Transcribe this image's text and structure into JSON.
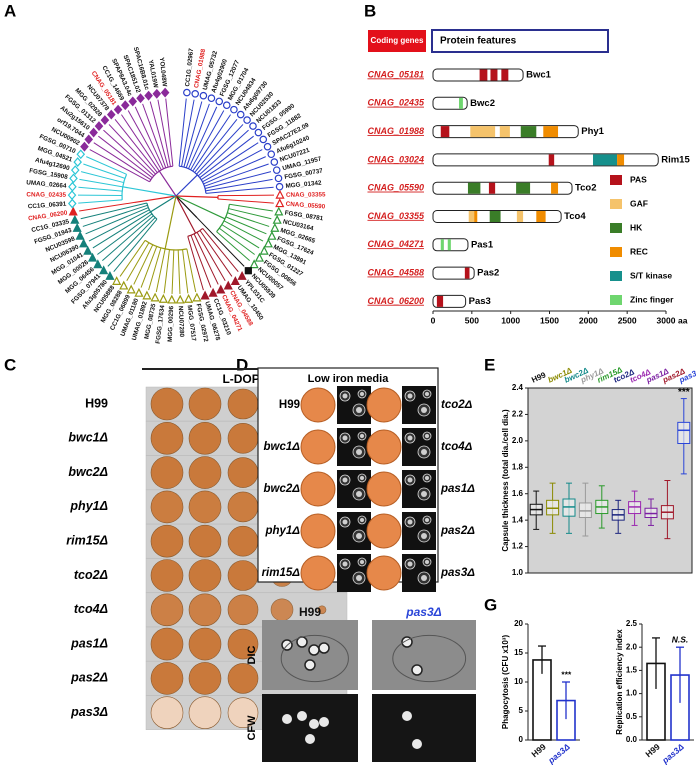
{
  "panel_labels": [
    "A",
    "B",
    "C",
    "D",
    "E",
    "F",
    "G"
  ],
  "tree": {
    "clades": [
      {
        "color": "#2b3fc9",
        "marker": "circle",
        "filled": false,
        "leaves": [
          {
            "label": "CC1G_02967"
          },
          {
            "label": "CNAG_01988",
            "color": "#e02020"
          },
          {
            "label": "UMAG_05732"
          },
          {
            "label": "Afu4g02900"
          },
          {
            "label": "FGSG_12077"
          },
          {
            "label": "MGG_01704"
          },
          {
            "label": "NCU04834"
          },
          {
            "label": "Afu6g09730"
          },
          {
            "label": "NCU02530"
          },
          {
            "label": "NCU01833"
          },
          {
            "label": "FGSG_05990"
          },
          {
            "label": "FGSG_11882"
          },
          {
            "label": "SPAC27E2.09"
          },
          {
            "label": "Afu6g10240"
          },
          {
            "label": "NCU07221"
          },
          {
            "label": "UMAG_11957"
          },
          {
            "label": "FGSG_00737"
          },
          {
            "label": "MGG_01342"
          }
        ]
      },
      {
        "color": "#e02020",
        "marker": "triangle",
        "filled": false,
        "leaves": [
          {
            "label": "CNAG_03355",
            "color": "#e02020"
          },
          {
            "label": "CNAG_05590",
            "color": "#e02020"
          }
        ]
      },
      {
        "color": "#2e9a3a",
        "marker": "triangle",
        "filled": false,
        "leaves": [
          {
            "label": "FGSG_08781"
          },
          {
            "label": "NCU03164"
          },
          {
            "label": "MGG_02665"
          },
          {
            "label": "FGSG_17624"
          },
          {
            "label": "MGG_13891"
          },
          {
            "label": "FGSG_01227"
          },
          {
            "label": "FGSG_00856"
          },
          {
            "label": "NCU00057"
          }
        ]
      },
      {
        "color": "#111111",
        "marker": "square",
        "filled": true,
        "leaves": [
          {
            "label": "NCU05939"
          }
        ]
      },
      {
        "color": "#a0182a",
        "marker": "triangle",
        "filled": true,
        "leaves": [
          {
            "label": "YPL031C"
          },
          {
            "label": "UMAG_10450"
          },
          {
            "label": "CNAG_04588",
            "color": "#e02020"
          },
          {
            "label": "CNAG_04271",
            "color": "#e02020"
          },
          {
            "label": "CC1G_03210"
          },
          {
            "label": "UMAG_06278"
          }
        ]
      },
      {
        "color": "#9a9a10",
        "marker": "triangle",
        "filled": false,
        "leaves": [
          {
            "label": "FGSG_02972"
          },
          {
            "label": "MGG_07517"
          },
          {
            "label": "NCU07280"
          },
          {
            "label": "MGG_00296"
          },
          {
            "label": "FGSG_17634"
          },
          {
            "label": "MGG_08735"
          },
          {
            "label": "UMAG_01892"
          },
          {
            "label": "UMAG_01180"
          },
          {
            "label": "CC1G_06899"
          },
          {
            "label": "MGG_08288"
          },
          {
            "label": "NCU05888"
          }
        ]
      },
      {
        "color": "#14807a",
        "marker": "triangle",
        "filled": true,
        "leaves": [
          {
            "label": "Afu3g05780"
          },
          {
            "label": "FGSG_07941"
          },
          {
            "label": "MGG_06456"
          },
          {
            "label": "MGG_00026"
          },
          {
            "label": "MGG_01041"
          },
          {
            "label": "NCU06390"
          },
          {
            "label": "NCU03598"
          },
          {
            "label": "FGSG_01943"
          },
          {
            "label": "CC1G_03335"
          }
        ]
      },
      {
        "color": "#e02020",
        "marker": "triangle",
        "filled": true,
        "leaves": [
          {
            "label": "CNAG_06200",
            "color": "#e02020"
          }
        ]
      },
      {
        "color": "#2cc6d6",
        "marker": "diamond",
        "filled": false,
        "leaves": [
          {
            "label": "CC1G_06391"
          },
          {
            "label": "CNAG_02435",
            "color": "#e02020"
          },
          {
            "label": "UMAG_02664"
          },
          {
            "label": "FGSG_15908"
          },
          {
            "label": "Afu4g12690"
          },
          {
            "label": "MGG_04521"
          },
          {
            "label": "FGSG_00710"
          }
        ]
      },
      {
        "color": "#8a2a9a",
        "marker": "diamond",
        "filled": true,
        "leaves": [
          {
            "label": "NCU00902"
          },
          {
            "label": "orf19.7044"
          },
          {
            "label": "Afu2g15610"
          },
          {
            "label": "FGSG_01312"
          },
          {
            "label": "MGG_02928"
          },
          {
            "label": "NCU07378"
          },
          {
            "label": "CNAG_05181",
            "color": "#e02020"
          },
          {
            "label": "CC1G_14669"
          },
          {
            "label": "SPAP8A3.04c"
          },
          {
            "label": "SPAC1851.02"
          },
          {
            "label": "SPAC16B8.01c"
          },
          {
            "label": "YAL019W"
          },
          {
            "label": "YOL048W"
          }
        ]
      }
    ]
  },
  "domains": {
    "header_genes": "Coding genes",
    "header_features": "Protein features",
    "xlim": [
      0,
      3000
    ],
    "xticks": [
      0,
      500,
      1000,
      1500,
      2000,
      2500,
      3000
    ],
    "x_unit": "aa",
    "legend": [
      {
        "type": "PAS",
        "color": "#b5121b"
      },
      {
        "type": "GAF",
        "color": "#f5c36b"
      },
      {
        "type": "HK",
        "color": "#3a7d28"
      },
      {
        "type": "REC",
        "color": "#f08c00"
      },
      {
        "type": "S/T kinase",
        "color": "#16908c"
      },
      {
        "type": "Zinc finger",
        "color": "#6fd66f"
      }
    ],
    "proteins": [
      {
        "gene": "CNAG_05181",
        "name": "Bwc1",
        "length": 1160,
        "domains": [
          {
            "type": "PAS",
            "start": 600,
            "end": 700
          },
          {
            "type": "PAS",
            "start": 740,
            "end": 830
          },
          {
            "type": "PAS",
            "start": 880,
            "end": 970
          }
        ]
      },
      {
        "gene": "CNAG_02435",
        "name": "Bwc2",
        "length": 440,
        "domains": [
          {
            "type": "Zinc finger",
            "start": 335,
            "end": 385
          }
        ]
      },
      {
        "gene": "CNAG_01988",
        "name": "Phy1",
        "length": 1870,
        "domains": [
          {
            "type": "PAS",
            "start": 100,
            "end": 210
          },
          {
            "type": "GAF",
            "start": 480,
            "end": 800
          },
          {
            "type": "GAF",
            "start": 860,
            "end": 990
          },
          {
            "type": "HK",
            "start": 1130,
            "end": 1330
          },
          {
            "type": "REC",
            "start": 1420,
            "end": 1610
          }
        ]
      },
      {
        "gene": "CNAG_03024",
        "name": "Rim15",
        "length": 2900,
        "domains": [
          {
            "type": "PAS",
            "start": 1490,
            "end": 1560
          },
          {
            "type": "S/T kinase",
            "start": 2060,
            "end": 2370
          },
          {
            "type": "REC",
            "start": 2370,
            "end": 2460
          }
        ]
      },
      {
        "gene": "CNAG_05590",
        "name": "Tco2",
        "length": 1790,
        "domains": [
          {
            "type": "HK",
            "start": 450,
            "end": 610
          },
          {
            "type": "PAS",
            "start": 720,
            "end": 800
          },
          {
            "type": "HK",
            "start": 1070,
            "end": 1250
          },
          {
            "type": "REC",
            "start": 1520,
            "end": 1610
          }
        ]
      },
      {
        "gene": "CNAG_03355",
        "name": "Tco4",
        "length": 1650,
        "domains": [
          {
            "type": "GAF",
            "start": 460,
            "end": 530
          },
          {
            "type": "REC",
            "start": 530,
            "end": 570
          },
          {
            "type": "HK",
            "start": 730,
            "end": 870
          },
          {
            "type": "GAF",
            "start": 1080,
            "end": 1160
          },
          {
            "type": "REC",
            "start": 1330,
            "end": 1450
          }
        ]
      },
      {
        "gene": "CNAG_04271",
        "name": "Pas1",
        "length": 450,
        "domains": [
          {
            "type": "Zinc finger",
            "start": 100,
            "end": 140
          },
          {
            "type": "Zinc finger",
            "start": 190,
            "end": 230
          }
        ]
      },
      {
        "gene": "CNAG_04588",
        "name": "Pas2",
        "length": 530,
        "domains": [
          {
            "type": "PAS",
            "start": 410,
            "end": 470
          }
        ]
      },
      {
        "gene": "CNAG_06200",
        "name": "Pas3",
        "length": 420,
        "domains": [
          {
            "type": "PAS",
            "start": 50,
            "end": 130
          }
        ]
      }
    ]
  },
  "spot_assay": {
    "title": "L-DOPA",
    "strains": [
      {
        "name": "H99",
        "color": "#c9793b"
      },
      {
        "name": "bwc1Δ",
        "color": "#c9793b"
      },
      {
        "name": "bwc2Δ",
        "color": "#c9793b"
      },
      {
        "name": "phy1Δ",
        "color": "#cb7d40"
      },
      {
        "name": "rim15Δ",
        "color": "#c9793b"
      },
      {
        "name": "tco2Δ",
        "color": "#c9793b"
      },
      {
        "name": "tco4Δ",
        "color": "#cc8046"
      },
      {
        "name": "pas1Δ",
        "color": "#c9793b"
      },
      {
        "name": "pas2Δ",
        "color": "#c9793b"
      },
      {
        "name": "pas3Δ",
        "color": "#efd3bd"
      }
    ]
  },
  "low_iron": {
    "title": "Low iron media",
    "left": [
      "H99",
      "bwc1Δ",
      "bwc2Δ",
      "phy1Δ",
      "rim15Δ"
    ],
    "right": [
      "tco2Δ",
      "tco4Δ",
      "pas1Δ",
      "pas2Δ",
      "pas3Δ"
    ]
  },
  "micrographs": {
    "columns": [
      "H99",
      "pas3Δ"
    ],
    "rows": [
      "DIC",
      "CFW"
    ]
  },
  "chart_data": [
    {
      "type": "box",
      "ylabel": "Capsule thickness (total dia./cell dia.)",
      "categories": [
        "H99",
        "bwc1Δ",
        "bwc2Δ",
        "phy1Δ",
        "rim15Δ",
        "tco2Δ",
        "tco4Δ",
        "pas1Δ",
        "pas2Δ",
        "pas3Δ"
      ],
      "colors": [
        "#111111",
        "#8a8a00",
        "#138a8a",
        "#9a9a9a",
        "#2a9a2a",
        "#1a237e",
        "#9b27b0",
        "#7b1fa2",
        "#a0182a",
        "#2a45d8"
      ],
      "boxes": [
        {
          "min": 1.33,
          "q1": 1.44,
          "median": 1.48,
          "q3": 1.52,
          "max": 1.62
        },
        {
          "min": 1.3,
          "q1": 1.44,
          "median": 1.49,
          "q3": 1.55,
          "max": 1.68
        },
        {
          "min": 1.3,
          "q1": 1.43,
          "median": 1.5,
          "q3": 1.56,
          "max": 1.68
        },
        {
          "min": 1.28,
          "q1": 1.42,
          "median": 1.47,
          "q3": 1.53,
          "max": 1.68
        },
        {
          "min": 1.34,
          "q1": 1.45,
          "median": 1.5,
          "q3": 1.55,
          "max": 1.66
        },
        {
          "min": 1.3,
          "q1": 1.4,
          "median": 1.44,
          "q3": 1.48,
          "max": 1.55
        },
        {
          "min": 1.36,
          "q1": 1.45,
          "median": 1.5,
          "q3": 1.54,
          "max": 1.62
        },
        {
          "min": 1.36,
          "q1": 1.42,
          "median": 1.45,
          "q3": 1.49,
          "max": 1.56
        },
        {
          "min": 1.26,
          "q1": 1.41,
          "median": 1.46,
          "q3": 1.51,
          "max": 1.7
        },
        {
          "min": 1.75,
          "q1": 1.98,
          "median": 2.08,
          "q3": 2.14,
          "max": 2.32
        }
      ],
      "significance": [
        null,
        null,
        null,
        null,
        null,
        null,
        null,
        null,
        null,
        "***"
      ],
      "ylim": [
        1.0,
        2.4
      ],
      "yticks": [
        {
          "value": 1.0,
          "label": "1.0"
        },
        1.2,
        1.4,
        1.6,
        1.8,
        {
          "value": 2.0,
          "label": "2.0"
        },
        2.2,
        2.4
      ],
      "background": "#d3d3d3"
    },
    {
      "type": "bar",
      "ylabel": "Phagocytosis (CFU x10³)",
      "categories": [
        "H99",
        "pas3Δ"
      ],
      "values": [
        13.8,
        6.8
      ],
      "errors": [
        2.4,
        3.2
      ],
      "colors": [
        "#111111",
        "#2233cc"
      ],
      "significance": [
        null,
        "***"
      ],
      "ylim": [
        0,
        20
      ],
      "yticks": [
        0,
        5,
        10,
        15,
        20
      ]
    },
    {
      "type": "bar",
      "ylabel": "Replication efficiency index",
      "categories": [
        "H99",
        "pas3Δ"
      ],
      "values": [
        1.65,
        1.4
      ],
      "errors": [
        0.55,
        0.6
      ],
      "colors": [
        "#111111",
        "#2233cc"
      ],
      "significance": [
        null,
        "N.S."
      ],
      "ylim": [
        0,
        2.5
      ],
      "yticks": [
        {
          "value": 0,
          "label": "0.0"
        },
        0.5,
        {
          "value": 1,
          "label": "1.0"
        },
        1.5,
        {
          "value": 2,
          "label": "2.0"
        },
        2.5
      ]
    }
  ]
}
